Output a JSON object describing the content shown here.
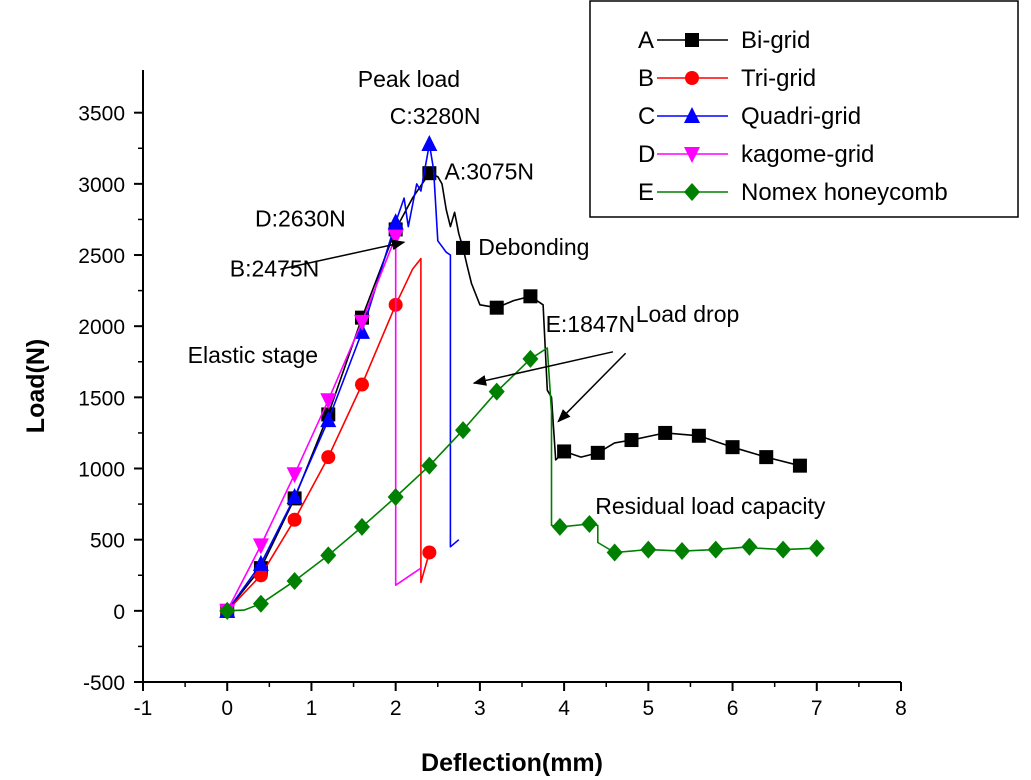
{
  "chart_data": {
    "type": "line",
    "title": "",
    "xlabel": "Deflection(mm)",
    "ylabel": "Load(N)",
    "xlim": [
      -1,
      8
    ],
    "ylim": [
      -500,
      3800
    ],
    "xticks": [
      -1,
      0,
      1,
      2,
      3,
      4,
      5,
      6,
      7,
      8
    ],
    "yticks": [
      -500,
      0,
      500,
      1000,
      1500,
      2000,
      2500,
      3000,
      3500
    ],
    "grid": false,
    "legend_position": "top-right",
    "series": [
      {
        "key": "A",
        "name": "Bi-grid",
        "color": "#000000",
        "marker": "square",
        "line": [
          [
            0,
            0
          ],
          [
            0.4,
            300
          ],
          [
            0.8,
            790
          ],
          [
            1.2,
            1380
          ],
          [
            1.6,
            2060
          ],
          [
            2.0,
            2680
          ],
          [
            2.2,
            2900
          ],
          [
            2.4,
            3075
          ],
          [
            2.5,
            3050
          ],
          [
            2.55,
            3000
          ],
          [
            2.6,
            2820
          ],
          [
            2.65,
            2700
          ],
          [
            2.7,
            2800
          ],
          [
            2.75,
            2650
          ],
          [
            2.8,
            2550
          ],
          [
            2.85,
            2420
          ],
          [
            2.9,
            2300
          ],
          [
            3.0,
            2150
          ],
          [
            3.2,
            2130
          ],
          [
            3.4,
            2180
          ],
          [
            3.6,
            2210
          ],
          [
            3.75,
            2150
          ],
          [
            3.8,
            1550
          ],
          [
            3.85,
            1500
          ],
          [
            3.9,
            1060
          ],
          [
            4.0,
            1120
          ],
          [
            4.2,
            1080
          ],
          [
            4.4,
            1110
          ],
          [
            4.6,
            1180
          ],
          [
            4.8,
            1200
          ],
          [
            5.2,
            1250
          ],
          [
            5.6,
            1230
          ],
          [
            6.0,
            1150
          ],
          [
            6.4,
            1080
          ],
          [
            6.8,
            1020
          ]
        ],
        "markers": [
          [
            0,
            0
          ],
          [
            0.4,
            300
          ],
          [
            0.8,
            790
          ],
          [
            1.2,
            1380
          ],
          [
            1.6,
            2060
          ],
          [
            2.0,
            2680
          ],
          [
            2.4,
            3075
          ],
          [
            2.8,
            2550
          ],
          [
            3.2,
            2130
          ],
          [
            3.6,
            2210
          ],
          [
            4.0,
            1120
          ],
          [
            4.4,
            1110
          ],
          [
            4.8,
            1200
          ],
          [
            5.2,
            1250
          ],
          [
            5.6,
            1230
          ],
          [
            6.0,
            1150
          ],
          [
            6.4,
            1080
          ],
          [
            6.8,
            1020
          ]
        ]
      },
      {
        "key": "B",
        "name": "Tri-grid",
        "color": "#ff0000",
        "marker": "circle",
        "line": [
          [
            0,
            0
          ],
          [
            0.4,
            250
          ],
          [
            0.8,
            640
          ],
          [
            1.2,
            1080
          ],
          [
            1.6,
            1590
          ],
          [
            2.0,
            2150
          ],
          [
            2.2,
            2400
          ],
          [
            2.3,
            2475
          ],
          [
            2.3,
            200
          ],
          [
            2.4,
            410
          ]
        ],
        "markers": [
          [
            0,
            0
          ],
          [
            0.4,
            250
          ],
          [
            0.8,
            640
          ],
          [
            1.2,
            1080
          ],
          [
            1.6,
            1590
          ],
          [
            2.0,
            2150
          ],
          [
            2.4,
            410
          ]
        ]
      },
      {
        "key": "C",
        "name": "Quadri-grid",
        "color": "#0000ff",
        "marker": "triangle-up",
        "line": [
          [
            0,
            0
          ],
          [
            0.4,
            330
          ],
          [
            0.8,
            800
          ],
          [
            1.2,
            1340
          ],
          [
            1.6,
            1960
          ],
          [
            2.0,
            2730
          ],
          [
            2.1,
            2900
          ],
          [
            2.15,
            2700
          ],
          [
            2.25,
            3000
          ],
          [
            2.3,
            2950
          ],
          [
            2.4,
            3280
          ],
          [
            2.45,
            3100
          ],
          [
            2.5,
            2600
          ],
          [
            2.6,
            2520
          ],
          [
            2.65,
            2500
          ],
          [
            2.65,
            450
          ],
          [
            2.75,
            500
          ]
        ],
        "markers": [
          [
            0,
            0
          ],
          [
            0.4,
            330
          ],
          [
            0.8,
            800
          ],
          [
            1.2,
            1340
          ],
          [
            1.6,
            1960
          ],
          [
            2.0,
            2730
          ],
          [
            2.4,
            3280
          ]
        ]
      },
      {
        "key": "D",
        "name": "kagome-grid",
        "color": "#ff00ff",
        "marker": "triangle-down",
        "line": [
          [
            0,
            0
          ],
          [
            0.4,
            460
          ],
          [
            0.8,
            960
          ],
          [
            1.2,
            1480
          ],
          [
            1.6,
            2030
          ],
          [
            2.0,
            2630
          ],
          [
            2.0,
            180
          ],
          [
            2.2,
            260
          ],
          [
            2.3,
            300
          ]
        ],
        "markers": [
          [
            0,
            0
          ],
          [
            0.4,
            460
          ],
          [
            0.8,
            960
          ],
          [
            1.2,
            1480
          ],
          [
            1.6,
            2030
          ],
          [
            2.0,
            2630
          ]
        ]
      },
      {
        "key": "E",
        "name": "Nomex honeycomb",
        "color": "#008000",
        "marker": "diamond",
        "line": [
          [
            0,
            0
          ],
          [
            0.2,
            5
          ],
          [
            0.4,
            50
          ],
          [
            0.8,
            210
          ],
          [
            1.2,
            390
          ],
          [
            1.6,
            590
          ],
          [
            2.0,
            800
          ],
          [
            2.4,
            1020
          ],
          [
            2.8,
            1270
          ],
          [
            3.2,
            1540
          ],
          [
            3.6,
            1770
          ],
          [
            3.8,
            1847
          ],
          [
            3.85,
            1400
          ],
          [
            3.85,
            600
          ],
          [
            3.95,
            590
          ],
          [
            4.3,
            610
          ],
          [
            4.4,
            600
          ],
          [
            4.4,
            480
          ],
          [
            4.6,
            410
          ],
          [
            5.0,
            430
          ],
          [
            5.4,
            420
          ],
          [
            5.8,
            430
          ],
          [
            6.2,
            450
          ],
          [
            6.3,
            440
          ],
          [
            6.6,
            430
          ],
          [
            7.0,
            440
          ]
        ],
        "markers": [
          [
            0,
            0
          ],
          [
            0.4,
            50
          ],
          [
            0.8,
            210
          ],
          [
            1.2,
            390
          ],
          [
            1.6,
            590
          ],
          [
            2.0,
            800
          ],
          [
            2.4,
            1020
          ],
          [
            2.8,
            1270
          ],
          [
            3.2,
            1540
          ],
          [
            3.6,
            1770
          ],
          [
            3.95,
            590
          ],
          [
            4.3,
            610
          ],
          [
            4.6,
            410
          ],
          [
            5.0,
            430
          ],
          [
            5.4,
            420
          ],
          [
            5.8,
            430
          ],
          [
            6.2,
            450
          ],
          [
            6.6,
            430
          ],
          [
            7.0,
            440
          ]
        ]
      }
    ],
    "annotations": [
      {
        "text": "Peak load",
        "x": 1.55,
        "y": 3680
      },
      {
        "text": "C:3280N",
        "x": 1.93,
        "y": 3420
      },
      {
        "text": "A:3075N",
        "x": 2.58,
        "y": 3030
      },
      {
        "text": "D:2630N",
        "x": 0.33,
        "y": 2700
      },
      {
        "text": "B:2475N",
        "x": 0.03,
        "y": 2350
      },
      {
        "text": "Debonding",
        "x": 2.98,
        "y": 2500
      },
      {
        "text": "E:1847N",
        "x": 3.78,
        "y": 1960
      },
      {
        "text": "Load drop",
        "x": 4.85,
        "y": 2030
      },
      {
        "text": "Elastic stage",
        "x": -0.47,
        "y": 1740
      },
      {
        "text": "Residual load capacity",
        "x": 4.37,
        "y": 680
      }
    ],
    "arrows": [
      {
        "from": [
          0.63,
          2400
        ],
        "to": [
          2.1,
          2590
        ]
      },
      {
        "from": [
          4.58,
          1820
        ],
        "to": [
          2.93,
          1600
        ]
      },
      {
        "from": [
          4.73,
          1810
        ],
        "to": [
          3.93,
          1330
        ]
      }
    ]
  }
}
